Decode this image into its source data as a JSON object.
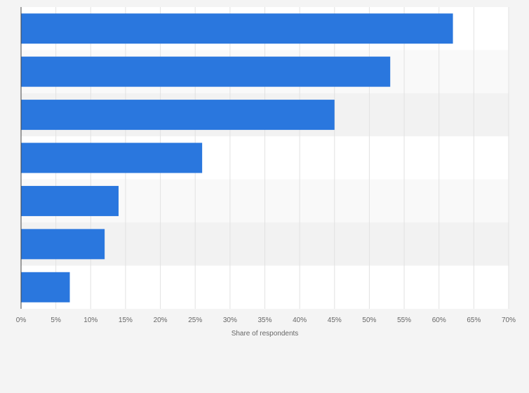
{
  "chart_data": {
    "type": "bar",
    "orientation": "horizontal",
    "title": "",
    "xlabel": "Share of respondents",
    "ylabel": "",
    "categories": [
      "",
      "",
      "",
      "",
      "",
      "",
      ""
    ],
    "values": [
      62,
      53,
      45,
      26,
      14,
      12,
      7
    ],
    "value_unit": "%",
    "xlim": [
      0,
      70
    ],
    "xticks": [
      "0%",
      "5%",
      "10%",
      "15%",
      "20%",
      "25%",
      "30%",
      "35%",
      "40%",
      "45%",
      "50%",
      "55%",
      "60%",
      "65%",
      "70%"
    ],
    "grid": true,
    "legend": "none",
    "bar_color": "#2a77de",
    "band_colors": [
      "#ffffff",
      "#f9f9f9",
      "#f2f2f2"
    ],
    "grid_color": "#e2e2e2",
    "axis_color": "#444444"
  }
}
